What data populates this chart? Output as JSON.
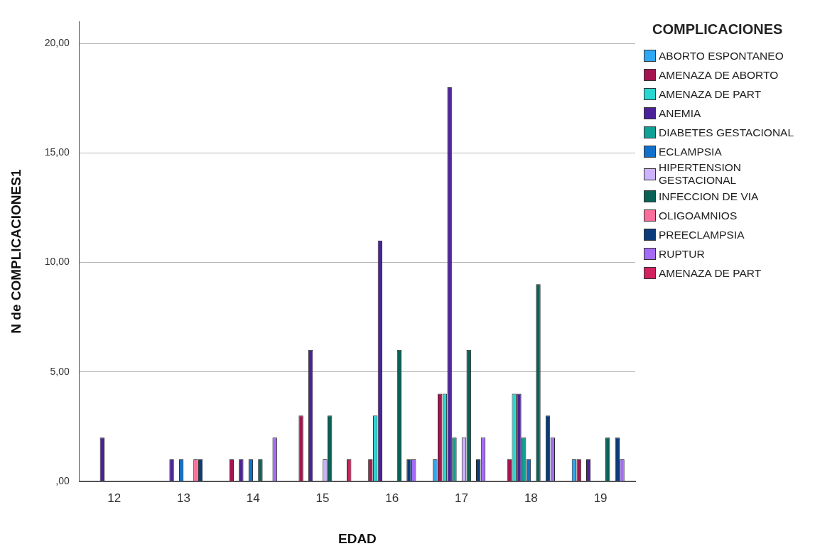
{
  "chart_data": {
    "type": "bar",
    "xlabel": "EDAD",
    "ylabel": "N de COMPLICACIONES1",
    "legend_title": "COMPLICACIONES",
    "legend": "right",
    "grid": "y",
    "categories": [
      "12",
      "13",
      "14",
      "15",
      "16",
      "17",
      "18",
      "19"
    ],
    "ylim": [
      0,
      21
    ],
    "yticks": [
      {
        "value": 0,
        "label": ",00"
      },
      {
        "value": 5,
        "label": "5,00"
      },
      {
        "value": 10,
        "label": "10,00"
      },
      {
        "value": 15,
        "label": "15,00"
      },
      {
        "value": 20,
        "label": "20,00"
      }
    ],
    "series": [
      {
        "name": "ABORTO ESPONTANEO",
        "color": "#2ea7f4",
        "values": [
          null,
          null,
          null,
          null,
          null,
          1,
          null,
          1
        ]
      },
      {
        "name": "AMENAZA DE ABORTO",
        "color": "#a3154f",
        "values": [
          null,
          null,
          1,
          3,
          1,
          4,
          1,
          1
        ]
      },
      {
        "name": "AMENAZA DE PART",
        "color": "#29d6d0",
        "values": [
          null,
          null,
          null,
          null,
          3,
          4,
          4,
          null
        ]
      },
      {
        "name": "ANEMIA",
        "color": "#4c2299",
        "values": [
          2,
          1,
          1,
          6,
          11,
          18,
          4,
          1
        ]
      },
      {
        "name": "DIABETES GESTACIONAL",
        "color": "#10a095",
        "values": [
          null,
          null,
          null,
          null,
          null,
          2,
          2,
          null
        ]
      },
      {
        "name": "ECLAMPSIA",
        "color": "#1170c9",
        "values": [
          null,
          1,
          1,
          null,
          null,
          null,
          1,
          null
        ]
      },
      {
        "name": "HIPERTENSION GESTACIONAL",
        "color": "#ccb3ff",
        "values": [
          null,
          null,
          null,
          1,
          null,
          2,
          null,
          null
        ]
      },
      {
        "name": "INFECCION DE VIA",
        "color": "#0b6156",
        "values": [
          null,
          null,
          1,
          3,
          6,
          6,
          9,
          2
        ]
      },
      {
        "name": "OLIGOAMNIOS",
        "color": "#f96e9a",
        "values": [
          null,
          1,
          null,
          null,
          null,
          null,
          null,
          null
        ]
      },
      {
        "name": "PREECLAMPSIA",
        "color": "#0b3b78",
        "values": [
          null,
          1,
          null,
          null,
          1,
          1,
          3,
          2
        ]
      },
      {
        "name": "RUPTUR",
        "color": "#a46cf5",
        "values": [
          null,
          null,
          2,
          null,
          1,
          2,
          2,
          1
        ]
      },
      {
        "name": "AMENAZA DE PART",
        "color": "#d12260",
        "values": [
          null,
          null,
          null,
          1,
          null,
          null,
          null,
          null
        ]
      }
    ]
  }
}
